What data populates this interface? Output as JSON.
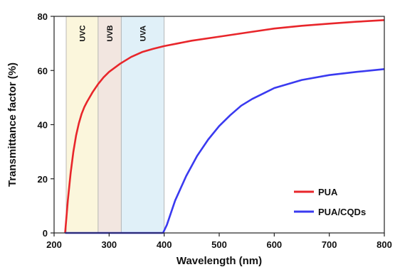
{
  "chart_data": {
    "type": "line",
    "xlabel": "Wavelength (nm)",
    "ylabel": "Transmittance factor (%)",
    "xlim": [
      200,
      800
    ],
    "ylim": [
      0,
      80
    ],
    "x_ticks": [
      200,
      300,
      400,
      500,
      600,
      700,
      800
    ],
    "y_ticks": [
      0,
      20,
      40,
      60,
      80
    ],
    "grid": false,
    "legend_position": "bottom-right",
    "bands": [
      {
        "label": "UVC",
        "x_start": 222,
        "x_end": 280,
        "color": "#fbf6dc"
      },
      {
        "label": "UVB",
        "x_start": 280,
        "x_end": 322,
        "color": "#f2e6e0"
      },
      {
        "label": "UVA",
        "x_start": 322,
        "x_end": 400,
        "color": "#e0f0f8"
      }
    ],
    "series": [
      {
        "name": "PUA",
        "color": "#e8262b",
        "x": [
          220,
          225,
          230,
          235,
          240,
          245,
          250,
          255,
          260,
          270,
          280,
          290,
          300,
          320,
          340,
          360,
          380,
          400,
          450,
          500,
          550,
          600,
          650,
          700,
          750,
          800
        ],
        "y": [
          0,
          12,
          22,
          30,
          36,
          40.5,
          44,
          46.5,
          48.5,
          52,
          55,
          57.5,
          59.5,
          62.5,
          65,
          66.8,
          68,
          69,
          71,
          72.5,
          74,
          75.5,
          76.5,
          77.3,
          78,
          78.6
        ]
      },
      {
        "name": "PUA/CQDs",
        "color": "#3a3af0",
        "x": [
          220,
          300,
          398,
          405,
          420,
          440,
          460,
          480,
          500,
          520,
          540,
          560,
          580,
          600,
          650,
          700,
          750,
          800
        ],
        "y": [
          0,
          0,
          0,
          3,
          12,
          21,
          28.5,
          34.5,
          39.5,
          43.5,
          47,
          49.5,
          51.5,
          53.5,
          56.5,
          58.3,
          59.5,
          60.5
        ]
      }
    ]
  }
}
